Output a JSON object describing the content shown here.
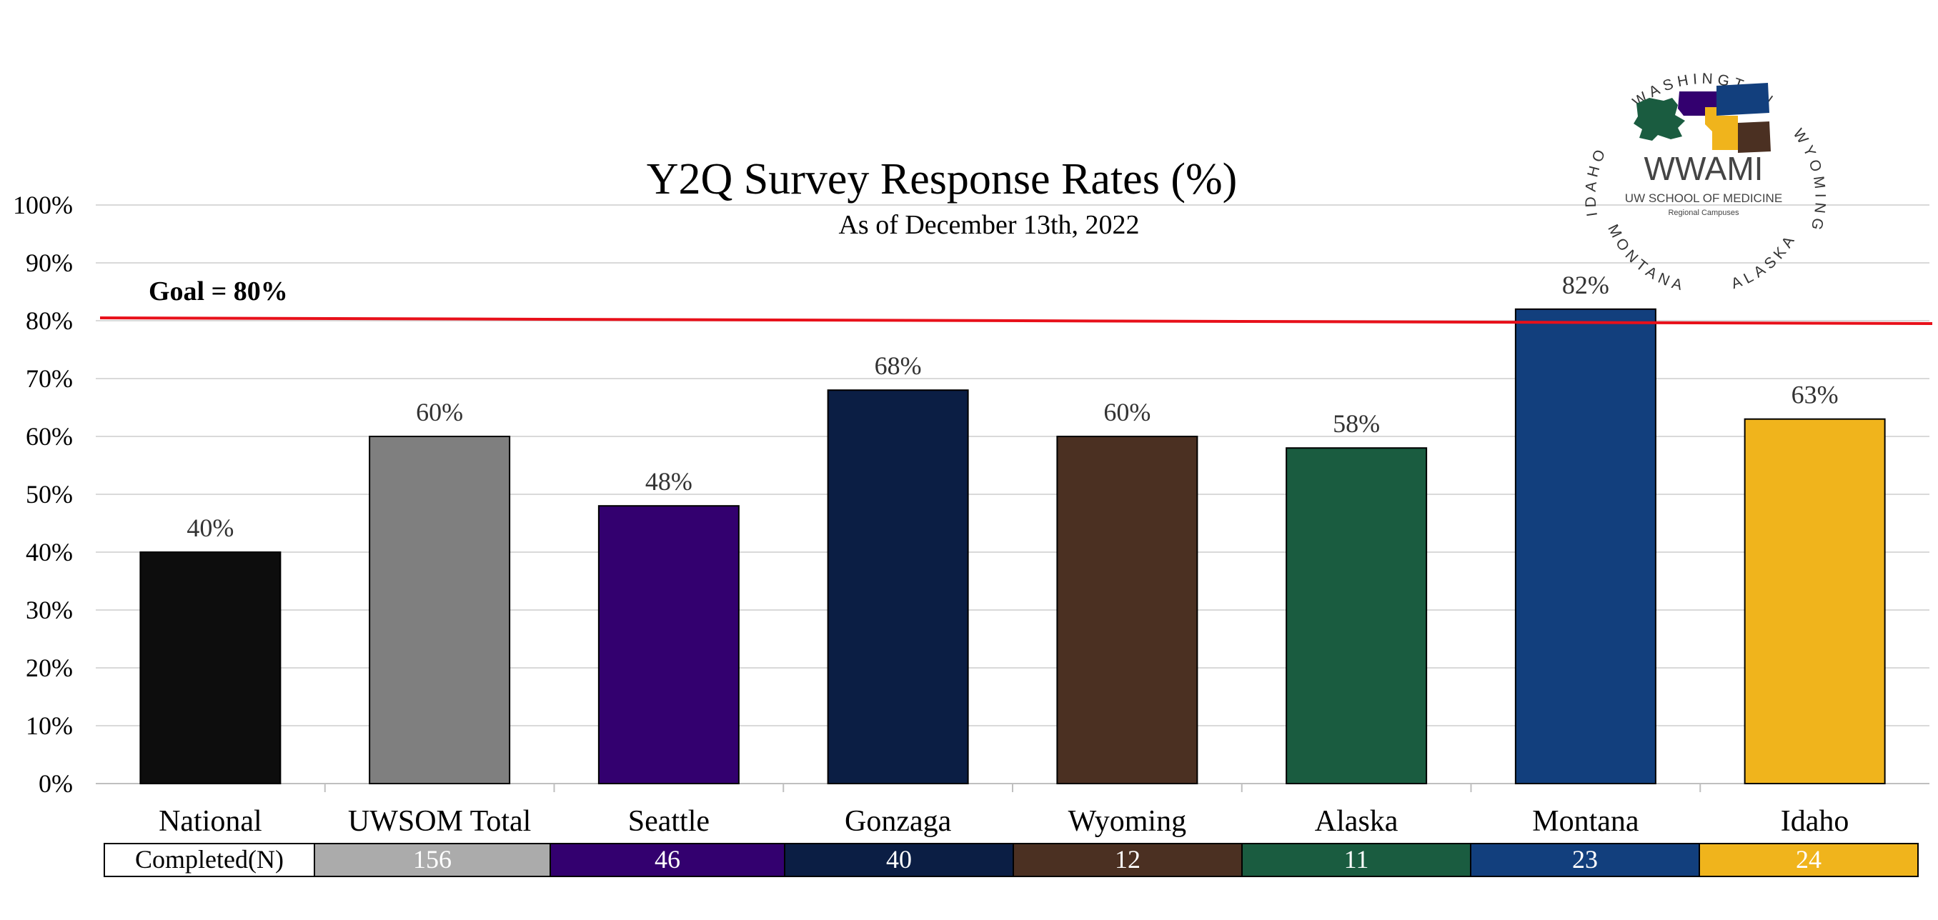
{
  "chart_data": {
    "type": "bar",
    "title": "Y2Q Survey Response Rates (%)",
    "subtitle": "As of December 13th, 2022",
    "categories": [
      "National",
      "UWSOM Total",
      "Seattle",
      "Gonzaga",
      "Wyoming",
      "Alaska",
      "Montana",
      "Idaho"
    ],
    "values": [
      40,
      60,
      48,
      68,
      60,
      58,
      82,
      63
    ],
    "value_labels": [
      "40%",
      "60%",
      "48%",
      "68%",
      "60%",
      "58%",
      "82%",
      "63%"
    ],
    "colors": [
      "#0d0d0d",
      "#7f7f7f",
      "#33006f",
      "#0b1e44",
      "#4b3022",
      "#1a5c40",
      "#123f7d",
      "#f0b41c"
    ],
    "ylim": [
      0,
      100
    ],
    "yticks": [
      "0%",
      "10%",
      "20%",
      "30%",
      "40%",
      "50%",
      "60%",
      "70%",
      "80%",
      "90%",
      "100%"
    ],
    "grid": true,
    "goal": {
      "value": 80,
      "label": "Goal = 80%",
      "color": "#e8101a"
    },
    "completed_table": {
      "label": "Completed(N)",
      "values": [
        "156",
        "46",
        "40",
        "12",
        "11",
        "23",
        "24"
      ],
      "colors": [
        "#ababab",
        "#33006f",
        "#0b1e44",
        "#4b3022",
        "#1a5c40",
        "#123f7d",
        "#f0b41c"
      ]
    }
  },
  "logo": {
    "name": "WWAMI",
    "line1": "UW SCHOOL OF MEDICINE",
    "line2": "Regional Campuses",
    "ring_top": "WASHINGTON",
    "ring_right": "WYOMING",
    "ring_left": "IDAHO",
    "ring_bottom_left": "MONTANA",
    "ring_bottom_right": "ALASKA",
    "colors": [
      "#1a5c40",
      "#33006f",
      "#f0b41c",
      "#4b3022",
      "#123f7d"
    ]
  }
}
